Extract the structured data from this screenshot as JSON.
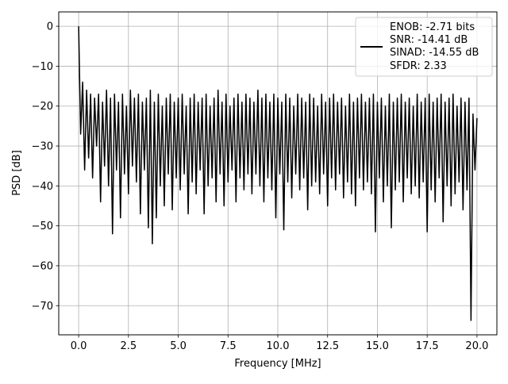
{
  "chart_data": {
    "type": "line",
    "title": "",
    "xlabel": "Frequency [MHz]",
    "ylabel": "PSD [dB]",
    "xlim": [
      -1.0,
      21.0
    ],
    "ylim": [
      -77.3,
      3.6
    ],
    "xticks": [
      0.0,
      2.5,
      5.0,
      7.5,
      10.0,
      12.5,
      15.0,
      17.5,
      20.0
    ],
    "xtick_labels": [
      "0.0",
      "2.5",
      "5.0",
      "7.5",
      "10.0",
      "12.5",
      "15.0",
      "17.5",
      "20.0"
    ],
    "yticks": [
      0,
      -10,
      -20,
      -30,
      -40,
      -50,
      -60,
      -70
    ],
    "ytick_labels": [
      "0",
      "−10",
      "−20",
      "−30",
      "−40",
      "−50",
      "−60",
      "−70"
    ],
    "grid": true,
    "legend_placement": "upper-right",
    "legend_entries": [
      "ENOB: -2.71 bits",
      "SNR: -14.41 dB",
      "SINAD: -14.55 dB",
      "SFDR: 2.33"
    ],
    "series": [
      {
        "color": "#000000",
        "x": [
          0,
          0.1,
          0.2,
          0.3,
          0.4,
          0.5,
          0.6,
          0.7,
          0.8,
          0.9,
          1,
          1.1,
          1.2,
          1.3,
          1.4,
          1.5,
          1.6,
          1.7,
          1.8,
          1.9,
          2,
          2.1,
          2.2,
          2.3,
          2.4,
          2.5,
          2.6,
          2.7,
          2.8,
          2.9,
          3,
          3.1,
          3.2,
          3.3,
          3.4,
          3.5,
          3.6,
          3.7,
          3.8,
          3.9,
          4,
          4.1,
          4.2,
          4.3,
          4.4,
          4.5,
          4.6,
          4.7,
          4.8,
          4.9,
          5,
          5.1,
          5.2,
          5.3,
          5.4,
          5.5,
          5.6,
          5.7,
          5.8,
          5.9,
          6,
          6.1,
          6.2,
          6.3,
          6.4,
          6.5,
          6.6,
          6.7,
          6.8,
          6.9,
          7,
          7.1,
          7.2,
          7.3,
          7.4,
          7.5,
          7.6,
          7.7,
          7.8,
          7.9,
          8,
          8.1,
          8.2,
          8.3,
          8.4,
          8.5,
          8.6,
          8.7,
          8.8,
          8.9,
          9,
          9.1,
          9.2,
          9.3,
          9.4,
          9.5,
          9.6,
          9.7,
          9.8,
          9.9,
          10,
          10.1,
          10.2,
          10.3,
          10.4,
          10.5,
          10.6,
          10.7,
          10.8,
          10.9,
          11,
          11.1,
          11.2,
          11.3,
          11.4,
          11.5,
          11.6,
          11.7,
          11.8,
          11.9,
          12,
          12.1,
          12.2,
          12.3,
          12.4,
          12.5,
          12.6,
          12.7,
          12.8,
          12.9,
          13,
          13.1,
          13.2,
          13.3,
          13.4,
          13.5,
          13.6,
          13.7,
          13.8,
          13.9,
          14,
          14.1,
          14.2,
          14.3,
          14.4,
          14.5,
          14.6,
          14.7,
          14.8,
          14.9,
          15,
          15.1,
          15.2,
          15.3,
          15.4,
          15.5,
          15.6,
          15.7,
          15.8,
          15.9,
          16,
          16.1,
          16.2,
          16.3,
          16.4,
          16.5,
          16.6,
          16.7,
          16.8,
          16.9,
          17,
          17.1,
          17.2,
          17.3,
          17.4,
          17.5,
          17.6,
          17.7,
          17.8,
          17.9,
          18,
          18.1,
          18.2,
          18.3,
          18.4,
          18.5,
          18.6,
          18.7,
          18.8,
          18.9,
          19,
          19.1,
          19.2,
          19.3,
          19.4,
          19.5,
          19.6,
          19.7,
          19.8,
          19.9,
          20
        ],
        "y": [
          0,
          -27,
          -14,
          -36,
          -16,
          -33,
          -17,
          -38,
          -18,
          -30,
          -17,
          -44,
          -19,
          -35,
          -16,
          -40,
          -18,
          -52,
          -17,
          -36,
          -19,
          -48,
          -17,
          -37,
          -20,
          -42,
          -16,
          -35,
          -18,
          -39,
          -17,
          -47,
          -19,
          -36,
          -18,
          -50.5,
          -16,
          -54.5,
          -19,
          -48,
          -17,
          -40,
          -20,
          -45,
          -18,
          -37,
          -17,
          -46,
          -19,
          -38,
          -18,
          -41,
          -17,
          -37,
          -20,
          -47,
          -18,
          -39,
          -17,
          -42,
          -19,
          -36,
          -18,
          -47,
          -17,
          -40,
          -20,
          -38,
          -18,
          -44,
          -16,
          -37,
          -19,
          -45,
          -17,
          -39,
          -20,
          -36,
          -18,
          -44,
          -17,
          -38,
          -19,
          -41,
          -17,
          -37,
          -18,
          -42,
          -19,
          -37,
          -16,
          -40,
          -18,
          -44,
          -17,
          -38,
          -19,
          -41,
          -17,
          -48,
          -18,
          -37,
          -19,
          -51,
          -17,
          -39,
          -18,
          -43,
          -20,
          -37,
          -17,
          -41,
          -18,
          -38,
          -19,
          -46,
          -17,
          -40,
          -18,
          -39,
          -20,
          -42,
          -17,
          -37,
          -19,
          -45,
          -18,
          -38,
          -17,
          -41,
          -19,
          -37,
          -18,
          -43,
          -20,
          -39,
          -17,
          -42,
          -19,
          -45,
          -18,
          -38,
          -17,
          -41,
          -19,
          -39,
          -18,
          -42,
          -17,
          -51.5,
          -19,
          -38,
          -18,
          -44,
          -20,
          -40,
          -17,
          -50.5,
          -19,
          -41,
          -18,
          -39,
          -17,
          -44,
          -19,
          -38,
          -18,
          -42,
          -20,
          -40,
          -17,
          -43,
          -19,
          -39,
          -18,
          -51.5,
          -17,
          -41,
          -19,
          -44,
          -18,
          -38,
          -17,
          -49,
          -19,
          -40,
          -18,
          -45,
          -17,
          -42,
          -20,
          -39,
          -18,
          -46,
          -19,
          -41,
          -18,
          -73.7,
          -22,
          -36,
          -23
        ]
      }
    ]
  }
}
